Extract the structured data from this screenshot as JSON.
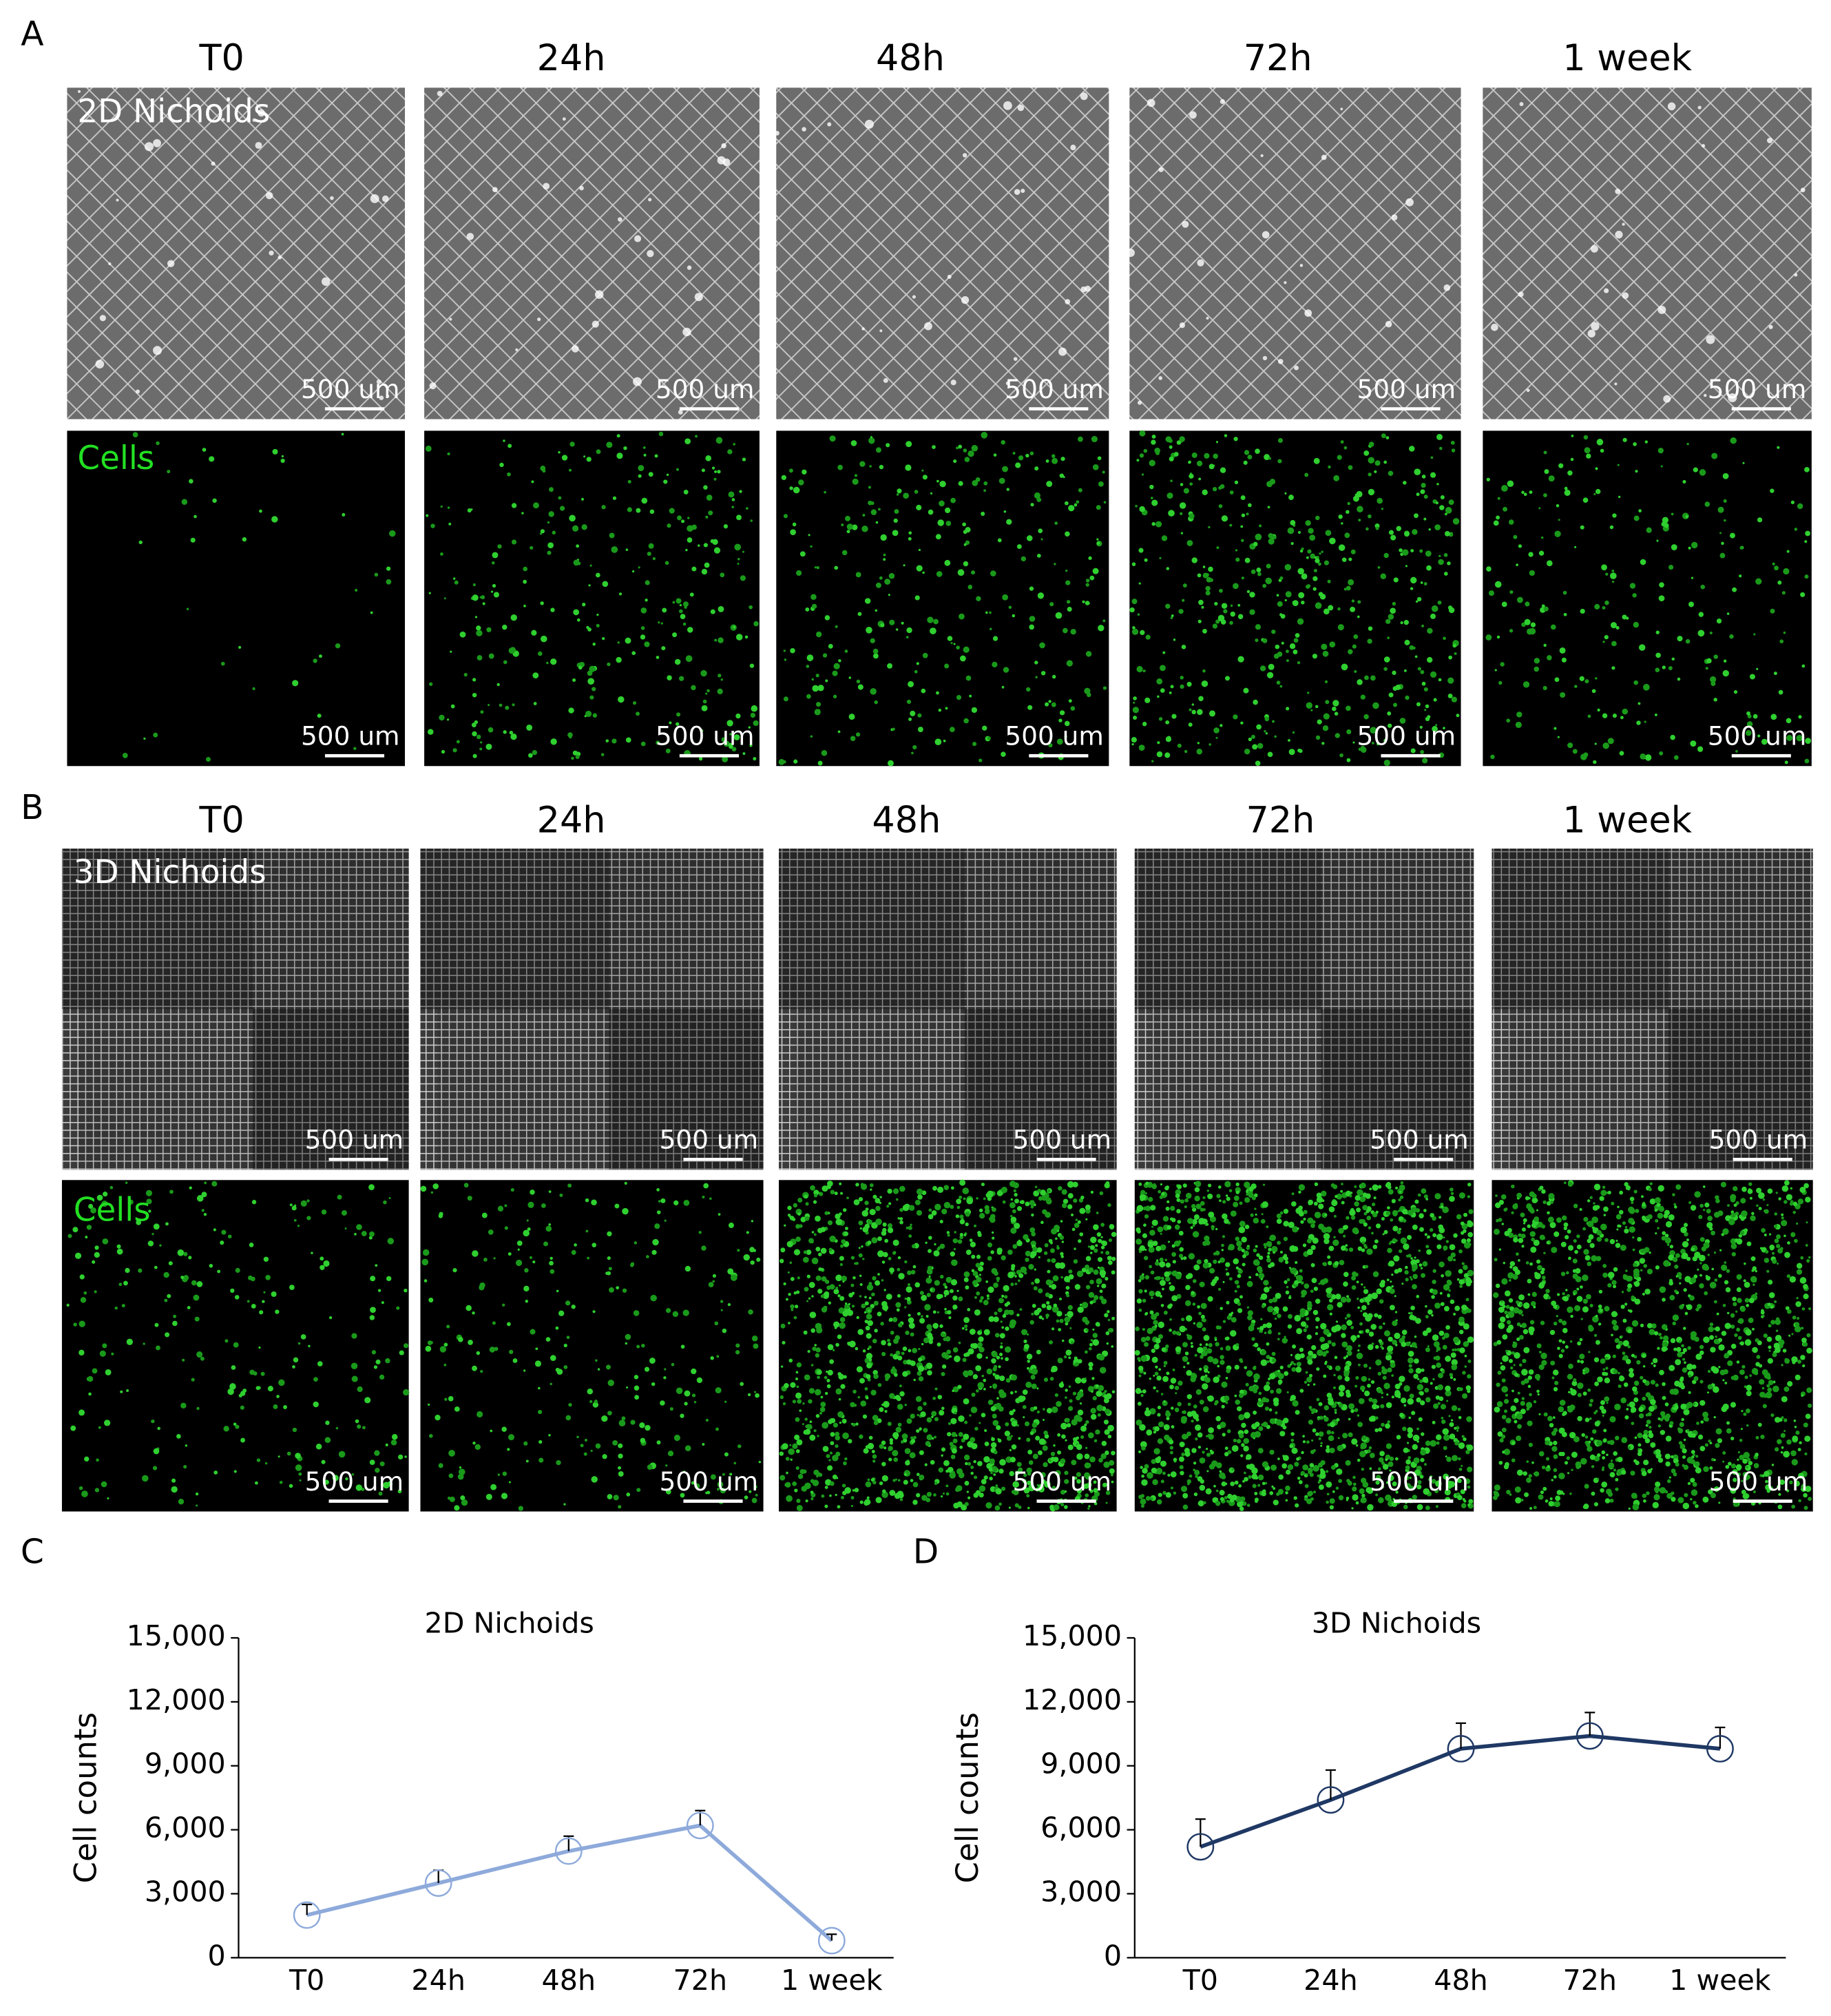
{
  "panels": [
    {
      "label": "A",
      "columns": [
        "T0",
        "24h",
        "48h",
        "72h",
        "1 week"
      ],
      "rows": [
        {
          "label": "2D Nichoids",
          "scale_bars": [
            "500 um",
            "500 um",
            "500 um",
            "500 um",
            "500 um"
          ]
        },
        {
          "label": "Cells",
          "scale_bars": [
            "500 um",
            "500 um",
            "500 um",
            "500 um",
            "500 um"
          ]
        }
      ]
    },
    {
      "label": "B",
      "columns": [
        "T0",
        "24h",
        "48h",
        "72h",
        "1 week"
      ],
      "rows": [
        {
          "label": "3D Nichoids",
          "scale_bars": [
            "500 um",
            "500 um",
            "500 um",
            "500 um",
            "500 um"
          ]
        },
        {
          "label": "Cells",
          "scale_bars": [
            "500 um",
            "500 um",
            "500 um",
            "500 um",
            "500 um"
          ]
        }
      ]
    }
  ],
  "chart_data": [
    {
      "type": "line",
      "panel_label": "C",
      "title": "2D Nichoids",
      "y_label": "Cell counts",
      "categories": [
        "T0",
        "24h",
        "48h",
        "72h",
        "1 week"
      ],
      "series": [
        {
          "color": "#8eaadb",
          "values": [
            2000,
            3500,
            5000,
            6200,
            800
          ],
          "errors": [
            500,
            600,
            700,
            700,
            300
          ]
        }
      ],
      "ylim": [
        0,
        15000
      ],
      "yticks": [
        0,
        {
          "value": 3000,
          "label": "3,000"
        },
        {
          "value": 6000,
          "label": "6,000"
        },
        {
          "value": 9000,
          "label": "9,000"
        },
        {
          "value": 12000,
          "label": "12,000"
        },
        {
          "value": 15000,
          "label": "15,000"
        }
      ]
    },
    {
      "type": "line",
      "panel_label": "D",
      "title": "3D Nichoids",
      "y_label": "Cell counts",
      "categories": [
        "T0",
        "24h",
        "48h",
        "72h",
        "1 week"
      ],
      "series": [
        {
          "color": "#1f3864",
          "values": [
            5200,
            7400,
            9800,
            10400,
            9800
          ],
          "errors": [
            1300,
            1400,
            1200,
            1100,
            1000
          ]
        }
      ],
      "ylim": [
        0,
        15000
      ],
      "yticks": [
        0,
        {
          "value": 3000,
          "label": "3,000"
        },
        {
          "value": 6000,
          "label": "6,000"
        },
        {
          "value": 9000,
          "label": "9,000"
        },
        {
          "value": 12000,
          "label": "12,000"
        },
        {
          "value": 15000,
          "label": "15,000"
        }
      ]
    }
  ]
}
